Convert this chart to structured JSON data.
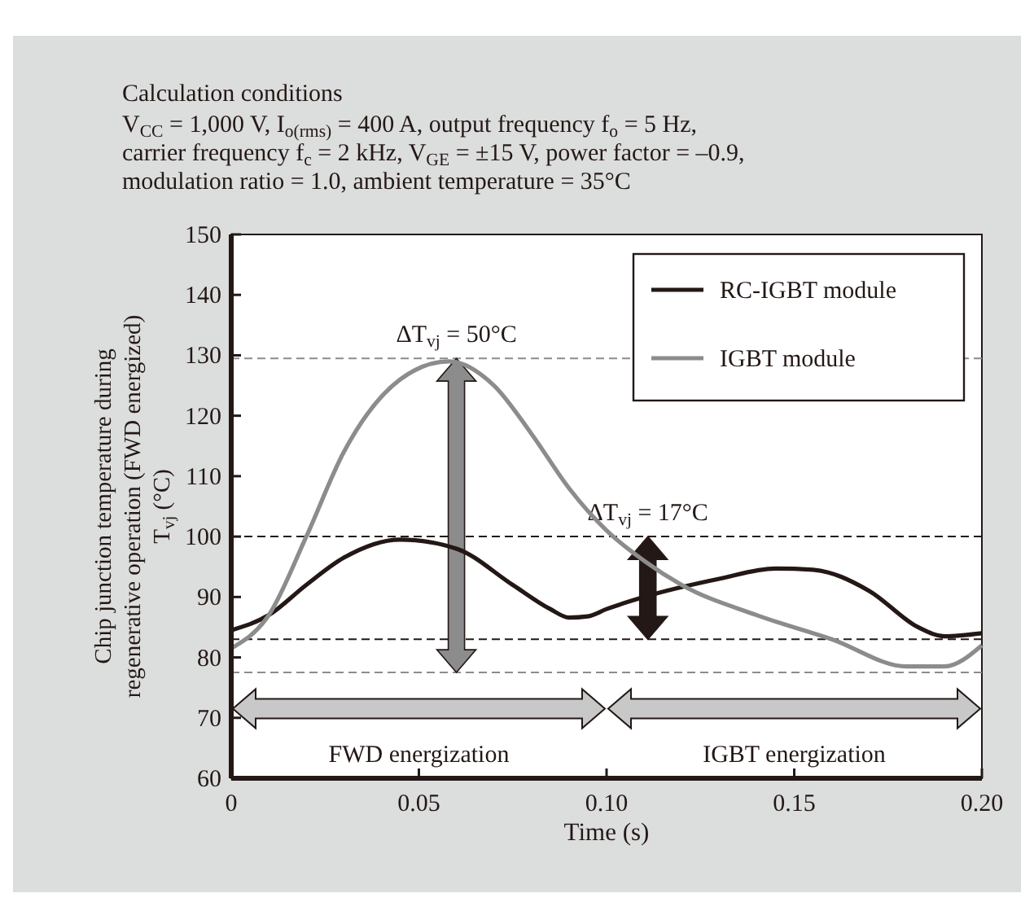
{
  "chart_data": {
    "type": "line",
    "title": "Calculation conditions",
    "subtitle": "V$_{CC}$ = 1,000 V, I$_{o(rms)}$ = 400 A, output frequency f$_{o}$ = 5 Hz,\ncarrier frequency f$_{c}$ = 2 kHz, V$_{GE}$ = ±15 V, power factor = –0.9,\nmodulation ratio = 1.0, ambient temperature = 35°C",
    "xlabel": "Time (s)",
    "ylabel": "Chip junction temperature during\nregenerative operation (FWD energized)\nT$_{vj}$ (°C)",
    "xlim": [
      0,
      0.2
    ],
    "xticks": [
      0,
      0.05,
      {
        "value": 0.1,
        "label": "0.10"
      },
      0.15,
      {
        "value": 0.2,
        "label": "0.20"
      }
    ],
    "ylim": [
      60,
      150
    ],
    "yticks": [
      60,
      70,
      80,
      90,
      100,
      110,
      120,
      130,
      140,
      150
    ],
    "grid": false,
    "legend": "top right",
    "marker": "none",
    "line_style": "solid",
    "series": [
      {
        "name": "RC-IGBT module",
        "color": "#231815",
        "x": [
          0,
          0.01,
          0.02,
          0.03,
          0.045,
          0.06,
          0.075,
          0.085,
          0.09,
          0.095,
          0.1,
          0.11,
          0.13,
          0.145,
          0.155,
          0.17,
          0.183,
          0.19,
          0.2
        ],
        "values": [
          84.5,
          87,
          92,
          96.5,
          99.5,
          98,
          92,
          88,
          86.6,
          86.8,
          88,
          90,
          93,
          94.7,
          94.5,
          91,
          85,
          83.5,
          84
        ]
      },
      {
        "name": "IGBT module",
        "color": "#8c8c8c",
        "x": [
          0,
          0.01,
          0.02,
          0.03,
          0.045,
          0.058,
          0.07,
          0.08,
          0.09,
          0.1,
          0.11,
          0.12,
          0.14,
          0.16,
          0.18,
          0.19,
          0.2
        ],
        "values": [
          81.5,
          87,
          100,
          114,
          126,
          129,
          125,
          117,
          108,
          101,
          96,
          92,
          87,
          83,
          78.5,
          78.5,
          82
        ]
      }
    ],
    "ref_lines": [
      {
        "axis": "y",
        "value": 129.5,
        "color": "#8c8c8c",
        "line_style": "dashed"
      },
      {
        "axis": "y",
        "value": 77.5,
        "color": "#8c8c8c",
        "line_style": "dashed"
      },
      {
        "axis": "y",
        "value": 100,
        "color": "#231815",
        "line_style": "dashed"
      },
      {
        "axis": "y",
        "value": 83,
        "color": "#231815",
        "line_style": "dashed"
      }
    ],
    "annotations": [
      {
        "text": "ΔT$_{vj}$ = 50°C",
        "x": 0.06,
        "y": 129.5
      },
      {
        "text": "ΔT$_{vj}$ = 17°C",
        "x": 0.111,
        "y": 100
      },
      "FWD energization",
      "IGBT energization"
    ]
  }
}
